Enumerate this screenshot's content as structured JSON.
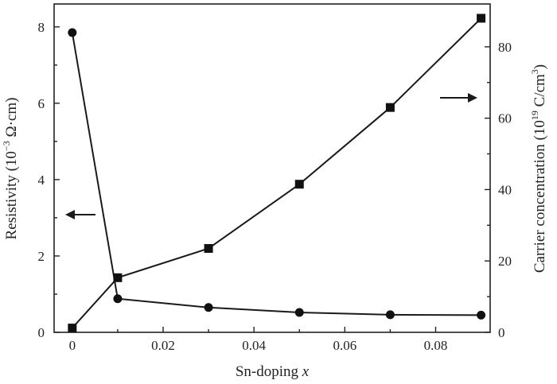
{
  "chart_data": {
    "type": "line",
    "xlabel": "Sn-doping x",
    "xlabel_parts": {
      "text": "Sn-doping ",
      "variable": "x"
    },
    "ylabel_left": "Resistivity (10−3 Ω·cm)",
    "ylabel_left_parts": {
      "pre": "Resistivity (10",
      "sup": "−3",
      "post": " Ω·cm)"
    },
    "ylabel_right": "Carrier concentration (1019 C/cm3)",
    "ylabel_right_parts": {
      "pre": "Carrier concentration (10",
      "sup1": "19",
      "mid": " C/cm",
      "sup2": "3",
      "post": ")"
    },
    "xlim": [
      -0.004,
      0.092
    ],
    "ylim_left": [
      0,
      8.6
    ],
    "ylim_right": [
      0,
      92
    ],
    "x_ticks": [
      0,
      0.02,
      0.04,
      0.06,
      0.08
    ],
    "x_tick_labels": [
      "0",
      "0.02",
      "0.04",
      "0.06",
      "0.08"
    ],
    "y_left_ticks": [
      0,
      2,
      4,
      6,
      8
    ],
    "y_left_tick_labels": [
      "0",
      "2",
      "4",
      "6",
      "8"
    ],
    "y_right_ticks": [
      0,
      20,
      40,
      60,
      80
    ],
    "y_right_tick_labels": [
      "0",
      "20",
      "40",
      "60",
      "80"
    ],
    "grid": false,
    "series": [
      {
        "axis": "left",
        "marker": "circle",
        "x": [
          0,
          0.01,
          0.03,
          0.05,
          0.07,
          0.09
        ],
        "values": [
          7.85,
          0.88,
          0.65,
          0.52,
          0.46,
          0.45
        ]
      },
      {
        "axis": "right",
        "marker": "square",
        "x": [
          0,
          0.01,
          0.03,
          0.05,
          0.07,
          0.09
        ],
        "values": [
          1.2,
          15.3,
          23.5,
          41.5,
          63.0,
          88.0
        ]
      }
    ],
    "annotations": [
      {
        "type": "arrow",
        "direction": "left",
        "points_to": "left-axis"
      },
      {
        "type": "arrow",
        "direction": "right",
        "points_to": "right-axis"
      }
    ]
  }
}
